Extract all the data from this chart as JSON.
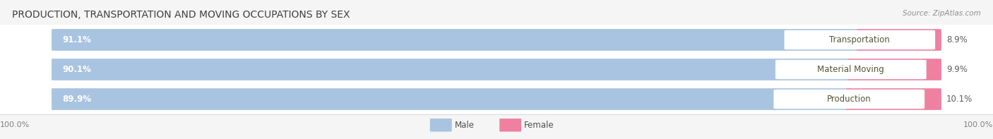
{
  "title": "PRODUCTION, TRANSPORTATION AND MOVING OCCUPATIONS BY SEX",
  "source": "Source: ZipAtlas.com",
  "categories": [
    "Transportation",
    "Material Moving",
    "Production"
  ],
  "male_values": [
    91.1,
    90.1,
    89.9
  ],
  "female_values": [
    8.9,
    9.9,
    10.1
  ],
  "male_color": "#a8c4e0",
  "female_color": "#f080a0",
  "male_label": "Male",
  "female_label": "Female",
  "bg_color": "#f5f5f5",
  "row_bg_color": "#ffffff",
  "bar_bg_color": "#dcdce8",
  "title_fontsize": 10,
  "source_fontsize": 7.5,
  "bar_label_fontsize": 8.5,
  "cat_label_fontsize": 8.5,
  "tick_fontsize": 8,
  "legend_fontsize": 8.5,
  "axis_label_left": "100.0%",
  "axis_label_right": "100.0%",
  "male_text_color": "#ffffff",
  "separator_color": "#d8d8d8",
  "category_text_color": "#555535"
}
